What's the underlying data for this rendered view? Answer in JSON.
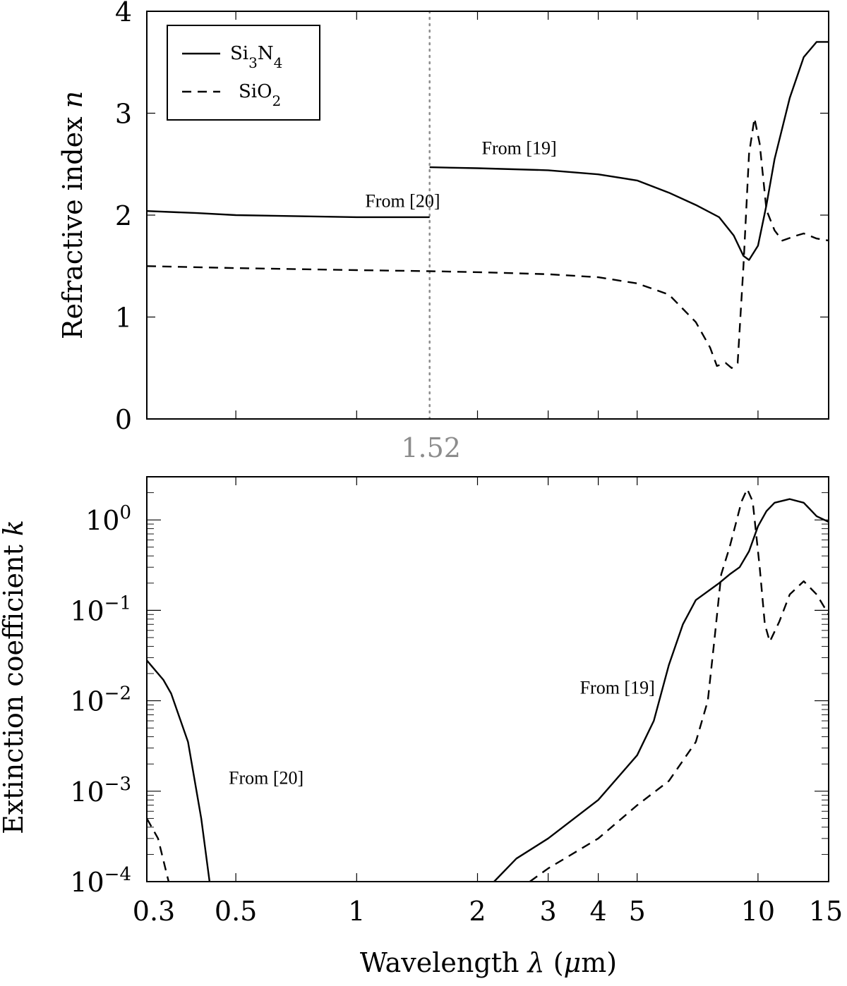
{
  "chart_data": [
    {
      "type": "line",
      "panel": "top",
      "ylabel": "Refractive index n",
      "xscale": "log",
      "xlim": [
        0.3,
        15
      ],
      "ylim": [
        0,
        4
      ],
      "y_ticks": [
        "0",
        "1",
        "2",
        "3",
        "4"
      ],
      "x_ticks": [
        0.3,
        0.5,
        1,
        2,
        3,
        4,
        5,
        10,
        15
      ],
      "legend": {
        "placement": "top-left",
        "entries": [
          {
            "label_base": "Si",
            "sub1": "3",
            "mid": "N",
            "sub2": "4",
            "style": "solid"
          },
          {
            "label_base": "SiO",
            "sub1": "2",
            "mid": "",
            "sub2": "",
            "style": "dashed"
          }
        ]
      },
      "vline": {
        "x": 1.52,
        "label": "1.52",
        "color": "#8c8c8c"
      },
      "annotations": [
        {
          "text": "From [20]",
          "x": 1.05,
          "y": 2.08
        },
        {
          "text": "From [19]",
          "x": 2.05,
          "y": 2.6
        }
      ],
      "series": [
        {
          "name": "Si3N4",
          "style": "solid",
          "points": [
            [
              0.3,
              2.04
            ],
            [
              0.4,
              2.02
            ],
            [
              0.5,
              2.0
            ],
            [
              0.7,
              1.99
            ],
            [
              1.0,
              1.98
            ],
            [
              1.52,
              1.98
            ],
            null,
            [
              1.52,
              2.47
            ],
            [
              2.0,
              2.46
            ],
            [
              3.0,
              2.44
            ],
            [
              4.0,
              2.4
            ],
            [
              5.0,
              2.34
            ],
            [
              6.0,
              2.22
            ],
            [
              7.0,
              2.1
            ],
            [
              8.0,
              1.98
            ],
            [
              8.7,
              1.8
            ],
            [
              9.2,
              1.6
            ],
            [
              9.5,
              1.56
            ],
            [
              10.0,
              1.7
            ],
            [
              10.5,
              2.1
            ],
            [
              11.0,
              2.55
            ],
            [
              12.0,
              3.15
            ],
            [
              13.0,
              3.55
            ],
            [
              14.0,
              3.7
            ],
            [
              15.0,
              3.7
            ]
          ]
        },
        {
          "name": "SiO2",
          "style": "dashed",
          "points": [
            [
              0.3,
              1.5
            ],
            [
              0.5,
              1.48
            ],
            [
              1.0,
              1.46
            ],
            [
              1.52,
              1.45
            ],
            [
              2.0,
              1.44
            ],
            [
              3.0,
              1.42
            ],
            [
              4.0,
              1.39
            ],
            [
              5.0,
              1.33
            ],
            [
              6.0,
              1.22
            ],
            [
              7.0,
              0.95
            ],
            [
              7.6,
              0.7
            ],
            [
              7.9,
              0.52
            ],
            [
              8.3,
              0.55
            ],
            [
              8.6,
              0.5
            ],
            [
              8.9,
              0.55
            ],
            [
              9.2,
              1.5
            ],
            [
              9.5,
              2.6
            ],
            [
              9.8,
              2.95
            ],
            [
              10.1,
              2.7
            ],
            [
              10.5,
              2.05
            ],
            [
              11.0,
              1.85
            ],
            [
              11.5,
              1.75
            ],
            [
              12.5,
              1.8
            ],
            [
              13.0,
              1.82
            ],
            [
              14.0,
              1.77
            ],
            [
              15.0,
              1.75
            ]
          ]
        }
      ]
    },
    {
      "type": "line",
      "panel": "bottom",
      "xlabel": "Wavelength λ (μm)",
      "ylabel": "Extinction coefficient k",
      "xscale": "log",
      "yscale": "log",
      "xlim": [
        0.3,
        15
      ],
      "ylim": [
        0.0001,
        3
      ],
      "y_ticks": [
        {
          "value": 1,
          "base": "10",
          "exp": "0"
        },
        {
          "value": 0.1,
          "base": "10",
          "exp": "−1"
        },
        {
          "value": 0.01,
          "base": "10",
          "exp": "−2"
        },
        {
          "value": 0.001,
          "base": "10",
          "exp": "−3"
        },
        {
          "value": 0.0001,
          "base": "10",
          "exp": "−4"
        }
      ],
      "x_ticks": [
        {
          "value": 0.3,
          "label": "0.3"
        },
        {
          "value": 0.5,
          "label": "0.5"
        },
        {
          "value": 1,
          "label": "1"
        },
        {
          "value": 2,
          "label": "2"
        },
        {
          "value": 3,
          "label": "3"
        },
        {
          "value": 4,
          "label": "4"
        },
        {
          "value": 5,
          "label": "5"
        },
        {
          "value": 10,
          "label": "10"
        },
        {
          "value": 15,
          "label": "15"
        }
      ],
      "annotations": [
        {
          "text": "From [20]",
          "x": 0.48,
          "y": 0.0012
        },
        {
          "text": "From [19]",
          "x": 3.6,
          "y": 0.012
        }
      ],
      "series": [
        {
          "name": "Si3N4",
          "style": "solid",
          "points": [
            [
              0.3,
              0.028
            ],
            [
              0.33,
              0.017
            ],
            [
              0.345,
              0.012
            ],
            [
              0.38,
              0.0035
            ],
            [
              0.41,
              0.0005
            ],
            [
              0.43,
              0.0001
            ],
            null,
            [
              2.2,
              0.0001
            ],
            [
              2.5,
              0.00018
            ],
            [
              3.0,
              0.0003
            ],
            [
              4.0,
              0.0008
            ],
            [
              5.0,
              0.0025
            ],
            [
              5.5,
              0.006
            ],
            [
              6.0,
              0.025
            ],
            [
              6.5,
              0.07
            ],
            [
              7.0,
              0.13
            ],
            [
              8.0,
              0.2
            ],
            [
              8.5,
              0.25
            ],
            [
              9.0,
              0.3
            ],
            [
              9.5,
              0.45
            ],
            [
              10.0,
              0.85
            ],
            [
              10.5,
              1.25
            ],
            [
              11.0,
              1.55
            ],
            [
              12.0,
              1.7
            ],
            [
              13.0,
              1.55
            ],
            [
              14.0,
              1.1
            ],
            [
              15.0,
              0.95
            ]
          ]
        },
        {
          "name": "SiO2",
          "style": "dashed",
          "points": [
            [
              0.3,
              0.0005
            ],
            [
              0.32,
              0.0003
            ],
            [
              0.34,
              0.0001
            ],
            null,
            [
              2.7,
              0.0001
            ],
            [
              3.0,
              0.00014
            ],
            [
              4.0,
              0.0003
            ],
            [
              5.0,
              0.0007
            ],
            [
              6.0,
              0.0013
            ],
            [
              7.0,
              0.0035
            ],
            [
              7.5,
              0.01
            ],
            [
              7.8,
              0.05
            ],
            [
              8.1,
              0.25
            ],
            [
              8.5,
              0.5
            ],
            [
              8.8,
              0.9
            ],
            [
              9.1,
              1.6
            ],
            [
              9.4,
              2.2
            ],
            [
              9.7,
              1.6
            ],
            [
              10.1,
              0.3
            ],
            [
              10.4,
              0.07
            ],
            [
              10.7,
              0.045
            ],
            [
              11.3,
              0.075
            ],
            [
              12.0,
              0.15
            ],
            [
              13.0,
              0.21
            ],
            [
              14.0,
              0.15
            ],
            [
              15.0,
              0.09
            ]
          ]
        }
      ]
    }
  ]
}
